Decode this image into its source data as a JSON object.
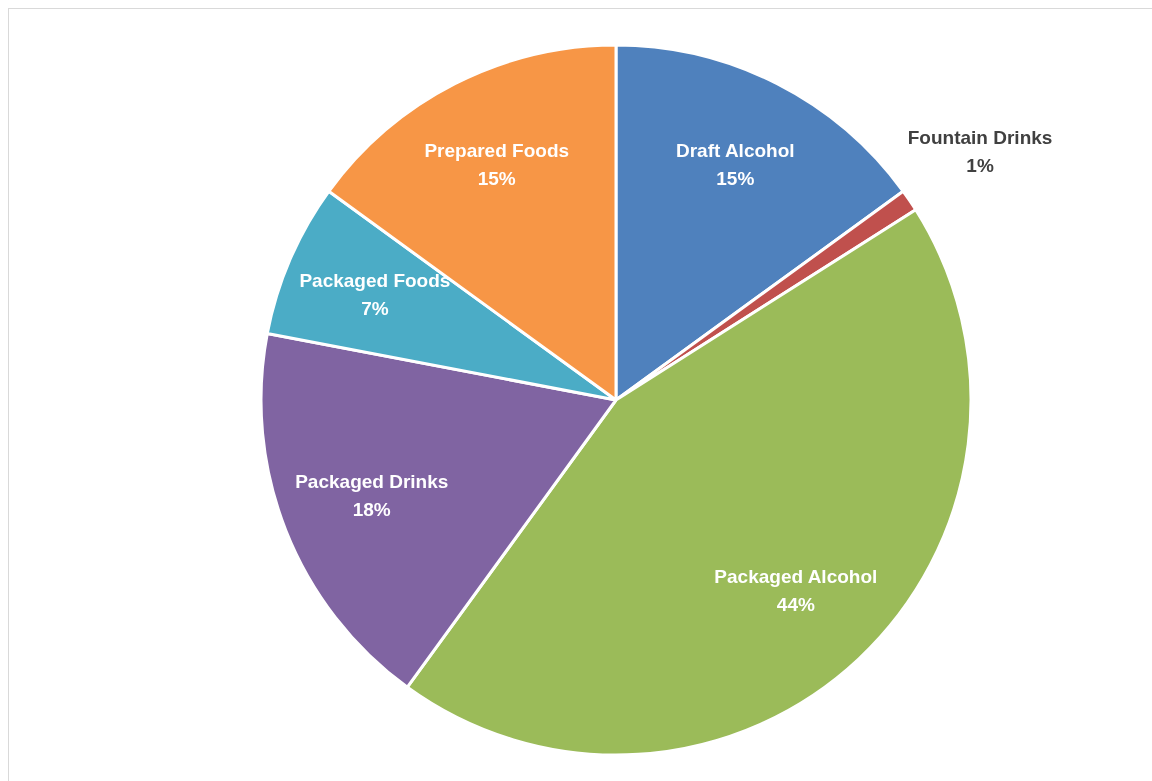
{
  "chart_data": {
    "type": "pie",
    "categories": [
      "Draft Alcohol",
      "Fountain Drinks",
      "Packaged Alcohol",
      "Packaged Drinks",
      "Packaged Foods",
      "Prepared Foods"
    ],
    "values": [
      15,
      1,
      44,
      18,
      7,
      15
    ],
    "value_labels": [
      "15%",
      "1%",
      "44%",
      "18%",
      "7%",
      "15%"
    ],
    "colors": [
      "#4f81bd",
      "#c0504d",
      "#9bbb59",
      "#8064a2",
      "#4bacc6",
      "#f79646"
    ],
    "legend": false
  }
}
